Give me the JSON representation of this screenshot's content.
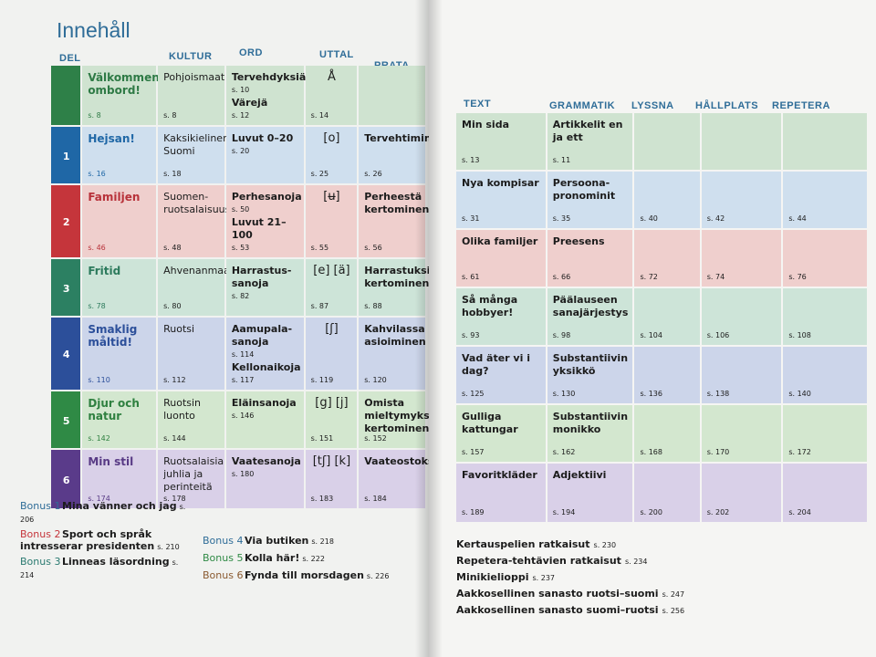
{
  "heading": "Innehåll",
  "columns": {
    "del": "DEL",
    "kultur": "KULTUR",
    "ord": "ORD",
    "uttal": "UTTAL",
    "prata": "PRATA",
    "text": "TEXT",
    "grammatik": "GRAMMATIK",
    "lyssna": "LYSSNA",
    "hallplats": "HÅLLPLATS",
    "repetera": "REPETERA"
  },
  "units": [
    {
      "num": "",
      "title": "Välkommen ombord!",
      "title_pg": "s. 8",
      "kultur": "Pohjoismaat",
      "kultur_pg": "s. 8",
      "ord": "Tervehdyksiä",
      "ord_pg": "s. 10",
      "ord2": "Värejä",
      "ord2_pg": "s. 12",
      "uttal": "Å",
      "uttal_pg": "s. 14",
      "prata": "",
      "prata_pg": "",
      "text": "Min sida",
      "text_pg": "s. 13",
      "grammatik": "Artikkelit en ja ett",
      "grammatik_pg": "s. 11",
      "lyssna_pg": "",
      "hallplats_pg": "",
      "repetera_pg": ""
    },
    {
      "num": "1",
      "title": "Hejsan!",
      "title_pg": "s. 16",
      "kultur": "Kaksikielinen Suomi",
      "kultur_pg": "s. 18",
      "ord": "Luvut 0–20",
      "ord_pg": "s. 20",
      "ord2": "",
      "ord2_pg": "",
      "uttal": "[o]",
      "uttal_pg": "s. 25",
      "prata": "Tervehtiminen",
      "prata_pg": "s. 26",
      "text": "Nya kompisar",
      "text_pg": "s. 31",
      "grammatik": "Persoona-pronominit",
      "grammatik_pg": "s. 35",
      "lyssna_pg": "s. 40",
      "hallplats_pg": "s. 42",
      "repetera_pg": "s. 44"
    },
    {
      "num": "2",
      "title": "Familjen",
      "title_pg": "s. 46",
      "kultur": "Suomen-ruotsalaisuus",
      "kultur_pg": "s. 48",
      "ord": "Perhesanoja",
      "ord_pg": "s. 50",
      "ord2": "Luvut 21–100",
      "ord2_pg": "s. 53",
      "uttal": "[ʉ]",
      "uttal_pg": "s. 55",
      "prata": "Perheestä kertominen",
      "prata_pg": "s. 56",
      "text": "Olika familjer",
      "text_pg": "s. 61",
      "grammatik": "Preesens",
      "grammatik_pg": "s. 66",
      "lyssna_pg": "s. 72",
      "hallplats_pg": "s. 74",
      "repetera_pg": "s. 76"
    },
    {
      "num": "3",
      "title": "Fritid",
      "title_pg": "s. 78",
      "kultur": "Ahvenanmaa",
      "kultur_pg": "s. 80",
      "ord": "Harrastus-sanoja",
      "ord_pg": "s. 82",
      "ord2": "",
      "ord2_pg": "",
      "uttal": "[e] [ä]",
      "uttal_pg": "s. 87",
      "prata": "Harrastuksista kertominen",
      "prata_pg": "s. 88",
      "text": "Så många hobbyer!",
      "text_pg": "s. 93",
      "grammatik": "Päälauseen sanajärjestys",
      "grammatik_pg": "s. 98",
      "lyssna_pg": "s. 104",
      "hallplats_pg": "s. 106",
      "repetera_pg": "s. 108"
    },
    {
      "num": "4",
      "title": "Smaklig måltid!",
      "title_pg": "s. 110",
      "kultur": "Ruotsi",
      "kultur_pg": "s. 112",
      "ord": "Aamupala-sanoja",
      "ord_pg": "s. 114",
      "ord2": "Kellonaikoja",
      "ord2_pg": "s. 117",
      "uttal": "[ʃ]",
      "uttal_pg": "s. 119",
      "prata": "Kahvilassa asioiminen",
      "prata_pg": "s. 120",
      "text": "Vad äter vi i dag?",
      "text_pg": "s. 125",
      "grammatik": "Substantiivin yksikkö",
      "grammatik_pg": "s. 130",
      "lyssna_pg": "s. 136",
      "hallplats_pg": "s. 138",
      "repetera_pg": "s. 140"
    },
    {
      "num": "5",
      "title": "Djur och natur",
      "title_pg": "s. 142",
      "kultur": "Ruotsin luonto",
      "kultur_pg": "s. 144",
      "ord": "Eläinsanoja",
      "ord_pg": "s. 146",
      "ord2": "",
      "ord2_pg": "",
      "uttal": "[g] [j]",
      "uttal_pg": "s. 151",
      "prata": "Omista mieltymyksistä kertominen",
      "prata_pg": "s. 152",
      "text": "Gulliga kattungar",
      "text_pg": "s. 157",
      "grammatik": "Substantiivin monikko",
      "grammatik_pg": "s. 162",
      "lyssna_pg": "s. 168",
      "hallplats_pg": "s. 170",
      "repetera_pg": "s. 172"
    },
    {
      "num": "6",
      "title": "Min stil",
      "title_pg": "s. 174",
      "kultur": "Ruotsalaisia juhlia ja perinteitä",
      "kultur_pg": "s. 178",
      "ord": "Vaatesanoja",
      "ord_pg": "s. 180",
      "ord2": "",
      "ord2_pg": "",
      "uttal": "[tʃ] [k]",
      "uttal_pg": "s. 183",
      "prata": "Vaateostoksilla",
      "prata_pg": "s. 184",
      "text": "Favoritkläder",
      "text_pg": "s. 189",
      "grammatik": "Adjektiivi",
      "grammatik_pg": "s. 194",
      "lyssna_pg": "s. 200",
      "hallplats_pg": "s. 202",
      "repetera_pg": "s. 204"
    }
  ],
  "bonus": [
    {
      "label": "Bonus 1",
      "text": "Mina vänner och jag",
      "pg": "s. 206"
    },
    {
      "label": "Bonus 2",
      "text": "Sport och språk intresserar presidenten",
      "pg": "s. 210"
    },
    {
      "label": "Bonus 3",
      "text": "Linneas läsordning",
      "pg": "s. 214"
    },
    {
      "label": "Bonus 4",
      "text": "Via butiken",
      "pg": "s. 218"
    },
    {
      "label": "Bonus 5",
      "text": "Kolla här!",
      "pg": "s. 222"
    },
    {
      "label": "Bonus 6",
      "text": "Fynda till morsdagen",
      "pg": "s. 226"
    }
  ],
  "appendix": [
    {
      "text": "Kertauspelien ratkaisut",
      "pg": "s. 230"
    },
    {
      "text": "Repetera-tehtävien ratkaisut",
      "pg": "s. 234"
    },
    {
      "text": "Minikielioppi",
      "pg": "s. 237"
    },
    {
      "text": "Aakkosellinen sanasto ruotsi–suomi",
      "pg": "s. 247"
    },
    {
      "text": "Aakkosellinen sanasto suomi–ruotsi",
      "pg": "s. 256"
    }
  ]
}
